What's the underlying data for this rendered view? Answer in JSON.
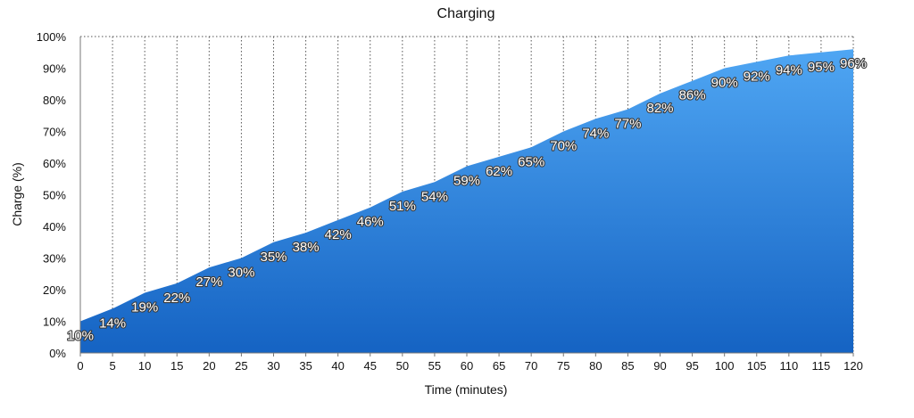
{
  "chart_data": {
    "type": "area",
    "title": "Charging",
    "xlabel": "Time (minutes)",
    "ylabel": "Charge (%)",
    "x": [
      0,
      5,
      10,
      15,
      20,
      25,
      30,
      35,
      40,
      45,
      50,
      55,
      60,
      65,
      70,
      75,
      80,
      85,
      90,
      95,
      100,
      105,
      110,
      115,
      120
    ],
    "series": [
      {
        "values": [
          10,
          14,
          19,
          22,
          27,
          30,
          35,
          38,
          42,
          46,
          51,
          54,
          59,
          62,
          65,
          70,
          74,
          77,
          82,
          86,
          90,
          92,
          94,
          95,
          96
        ],
        "labels": [
          "10%",
          "14%",
          "19%",
          "22%",
          "27%",
          "30%",
          "35%",
          "38%",
          "42%",
          "46%",
          "51%",
          "54%",
          "59%",
          "62%",
          "65%",
          "70%",
          "74%",
          "77%",
          "82%",
          "86%",
          "90%",
          "92%",
          "94%",
          "95%",
          "96%"
        ]
      }
    ],
    "xlim": [
      0,
      120
    ],
    "ylim": [
      0,
      100
    ],
    "x_ticks": [
      "0",
      "5",
      "10",
      "15",
      "20",
      "25",
      "30",
      "35",
      "40",
      "45",
      "50",
      "55",
      "60",
      "65",
      "70",
      "75",
      "80",
      "85",
      "90",
      "95",
      "100",
      "105",
      "110",
      "115",
      "120"
    ],
    "y_ticks": [
      "0%",
      "10%",
      "20%",
      "30%",
      "40%",
      "50%",
      "60%",
      "70%",
      "80%",
      "90%",
      "100%"
    ],
    "grid": "vertical-dotted",
    "legend": "none",
    "colors": {
      "fill_top": "#4fa6f3",
      "fill_bottom": "#1563c3",
      "gridline": "#555555",
      "axis": "#777777"
    }
  }
}
